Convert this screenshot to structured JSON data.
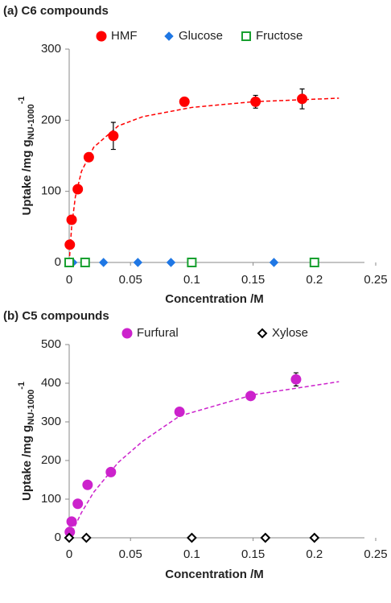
{
  "chart_data": [
    {
      "type": "scatter",
      "title": "(a) C6 compounds",
      "xlabel": "Concentration /M",
      "ylabel": {
        "text": "Uptake /mg g",
        "sub": "NU-1000",
        "sup": "-1"
      },
      "xlim": [
        0,
        0.25
      ],
      "xticks": [
        0,
        0.05,
        0.1,
        0.15,
        0.2,
        0.25
      ],
      "ylim": [
        0,
        300
      ],
      "yticks": [
        0,
        100,
        200,
        300
      ],
      "series": [
        {
          "name": "HMF",
          "color": "#ff0000",
          "marker": "circle",
          "filled": true,
          "x": [
            0.0005,
            0.002,
            0.007,
            0.016,
            0.036,
            0.094,
            0.152,
            0.19
          ],
          "values": [
            25,
            60,
            103,
            148,
            178,
            226,
            226,
            230
          ],
          "errors": [
            null,
            null,
            null,
            null,
            19,
            6,
            9,
            14
          ]
        },
        {
          "name": "Glucose",
          "color": "#1f77e4",
          "marker": "diamond",
          "filled": true,
          "x": [
            0,
            0.001,
            0.003,
            0.028,
            0.056,
            0.083,
            0.167,
            0.2
          ],
          "values": [
            0,
            0,
            0,
            0,
            0,
            0,
            0,
            0
          ]
        },
        {
          "name": "Fructose",
          "color": "#18a030",
          "marker": "square",
          "filled": false,
          "x": [
            0,
            0.013,
            0.1,
            0.2
          ],
          "values": [
            0,
            0,
            0,
            0
          ]
        },
        {
          "type": "line",
          "dashed": true,
          "color": "#ff0000",
          "x": [
            0,
            0.002,
            0.005,
            0.01,
            0.02,
            0.04,
            0.06,
            0.1,
            0.15,
            0.22
          ],
          "values": [
            0,
            50,
            92,
            128,
            162,
            192,
            205,
            218,
            226,
            231
          ]
        }
      ]
    },
    {
      "type": "scatter",
      "title": "(b) C5 compounds",
      "xlabel": "Concentration /M",
      "ylabel": {
        "text": "Uptake /mg g",
        "sub": "NU-1000",
        "sup": "-1"
      },
      "xlim": [
        0,
        0.25
      ],
      "xticks": [
        0,
        0.05,
        0.1,
        0.15,
        0.2,
        0.25
      ],
      "ylim": [
        0,
        500
      ],
      "yticks": [
        0,
        100,
        200,
        300,
        400,
        500
      ],
      "series": [
        {
          "name": "Furfural",
          "color": "#cc22cc",
          "marker": "circle",
          "filled": true,
          "x": [
            0.0005,
            0.002,
            0.007,
            0.015,
            0.034,
            0.09,
            0.148,
            0.185
          ],
          "values": [
            15,
            42,
            88,
            137,
            170,
            326,
            367,
            410
          ],
          "errors": [
            null,
            null,
            null,
            null,
            null,
            null,
            10,
            17
          ]
        },
        {
          "name": "Xylose",
          "color": "#000000",
          "marker": "diamond",
          "filled": false,
          "x": [
            0,
            0.014,
            0.1,
            0.16,
            0.2
          ],
          "values": [
            0,
            0,
            0,
            0,
            0
          ]
        },
        {
          "type": "line",
          "dashed": true,
          "color": "#cc22cc",
          "x": [
            0,
            0.01,
            0.02,
            0.04,
            0.06,
            0.09,
            0.15,
            0.22
          ],
          "values": [
            0,
            65,
            118,
            195,
            250,
            315,
            370,
            404
          ]
        }
      ]
    }
  ]
}
